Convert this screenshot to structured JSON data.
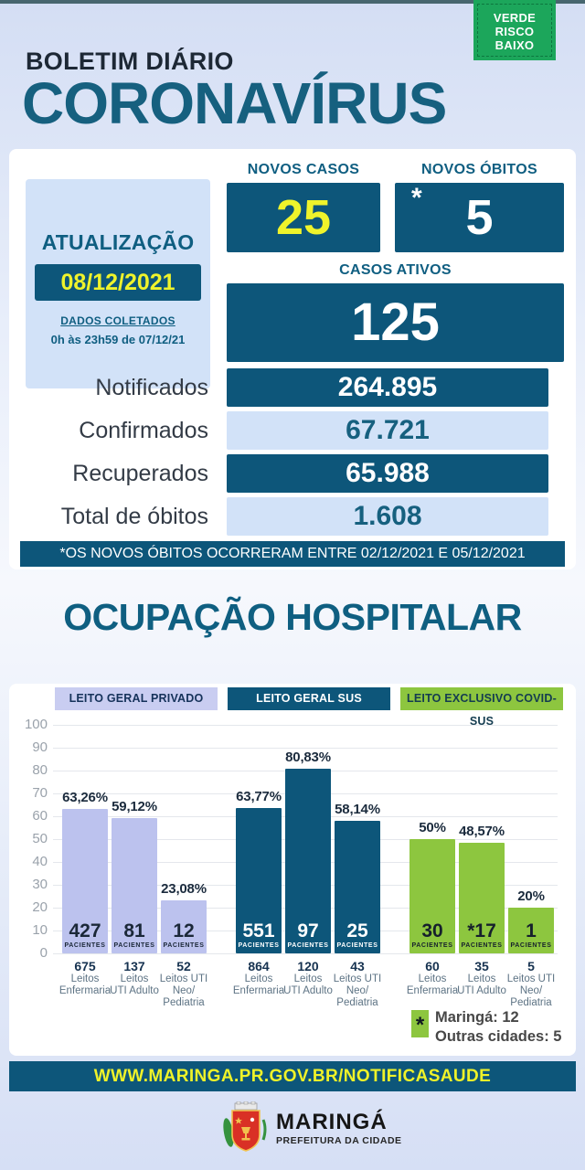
{
  "badge": {
    "lines": [
      "VERDE",
      "RISCO",
      "BAIXO"
    ]
  },
  "header": {
    "kicker": "BOLETIM DIÁRIO",
    "title": "CORONAVÍRUS"
  },
  "update": {
    "title": "ATUALIZAÇÃO",
    "date": "08/12/2021",
    "collected_label": "DADOS COLETADOS",
    "collected_range": "0h às 23h59 de 07/12/21"
  },
  "stats": {
    "novos_casos": {
      "label": "NOVOS CASOS",
      "value": "25"
    },
    "novos_obitos": {
      "label": "NOVOS ÓBITOS",
      "asterisk": "*",
      "value": "5"
    },
    "casos_ativos": {
      "label": "CASOS ATIVOS",
      "value": "125"
    },
    "rows": [
      {
        "label": "Notificados",
        "value": "264.895"
      },
      {
        "label": "Confirmados",
        "value": "67.721"
      },
      {
        "label": "Recuperados",
        "value": "65.988"
      },
      {
        "label": "Total de óbitos",
        "value": "1.608"
      }
    ],
    "note": "*OS NOVOS ÓBITOS OCORRERAM ENTRE 02/12/2021 E 05/12/2021"
  },
  "hospital_title": "OCUPAÇÃO HOSPITALAR",
  "chart_data": {
    "type": "bar",
    "title": "OCUPAÇÃO HOSPITALAR",
    "ylabel": "",
    "ylim": [
      0,
      100
    ],
    "yticks": [
      0,
      10,
      20,
      30,
      40,
      50,
      60,
      70,
      80,
      90,
      100
    ],
    "grid": true,
    "patients_word": "PACIENTES",
    "groups": [
      {
        "name": "LEITO GERAL PRIVADO",
        "bar_color": "#bcc2ee",
        "on_bar_text": "#1b2838",
        "bars": [
          {
            "pct": 63.26,
            "pct_label": "63,26%",
            "patients": "427",
            "beds_value": "675",
            "beds_lines": [
              "Leitos",
              "Enfermaria"
            ]
          },
          {
            "pct": 59.12,
            "pct_label": "59,12%",
            "patients": "81",
            "beds_value": "137",
            "beds_lines": [
              "Leitos",
              "UTI Adulto"
            ]
          },
          {
            "pct": 23.08,
            "pct_label": "23,08%",
            "patients": "12",
            "beds_value": "52",
            "beds_lines": [
              "Leitos UTI",
              "Neo/",
              "Pediatria"
            ]
          }
        ]
      },
      {
        "name": "LEITO GERAL SUS",
        "bar_color": "#0d567a",
        "on_bar_text": "#ffffff",
        "bars": [
          {
            "pct": 63.77,
            "pct_label": "63,77%",
            "patients": "551",
            "beds_value": "864",
            "beds_lines": [
              "Leitos",
              "Enfermaria"
            ]
          },
          {
            "pct": 80.83,
            "pct_label": "80,83%",
            "patients": "97",
            "beds_value": "120",
            "beds_lines": [
              "Leitos",
              "UTI Adulto"
            ]
          },
          {
            "pct": 58.14,
            "pct_label": "58,14%",
            "patients": "25",
            "beds_value": "43",
            "beds_lines": [
              "Leitos UTI",
              "Neo/",
              "Pediatria"
            ]
          }
        ]
      },
      {
        "name": "LEITO EXCLUSIVO COVID-SUS",
        "bar_color": "#8dc63f",
        "on_bar_text": "#16202c",
        "bars": [
          {
            "pct": 50,
            "pct_label": "50%",
            "patients": "30",
            "beds_value": "60",
            "beds_lines": [
              "Leitos",
              "Enfermaria"
            ]
          },
          {
            "pct": 48.57,
            "pct_label": "48,57%",
            "patients": "*17",
            "beds_value": "35",
            "beds_lines": [
              "Leitos",
              "UTI Adulto"
            ]
          },
          {
            "pct": 20,
            "pct_label": "20%",
            "patients": "1",
            "beds_value": "5",
            "beds_lines": [
              "Leitos UTI",
              "Neo/",
              "Pediatria"
            ]
          }
        ]
      }
    ],
    "legend": {
      "symbol": "*",
      "lines": [
        "Maringá: 12",
        "Outras cidades: 5"
      ]
    }
  },
  "footer": {
    "url": "WWW.MARINGA.PR.GOV.BR/NOTIFICASAUDE",
    "logo_title": "MARINGÁ",
    "logo_subtitle": "PREFEITURA DA CIDADE"
  },
  "colors": {
    "teal": "#0d567a",
    "teal_text": "#0f5e81",
    "yellow": "#eff32b",
    "light_blue": "#d2e2f8",
    "lavender": "#bcc2ee",
    "green": "#8dc63f",
    "badge_green": "#1ca65b"
  }
}
